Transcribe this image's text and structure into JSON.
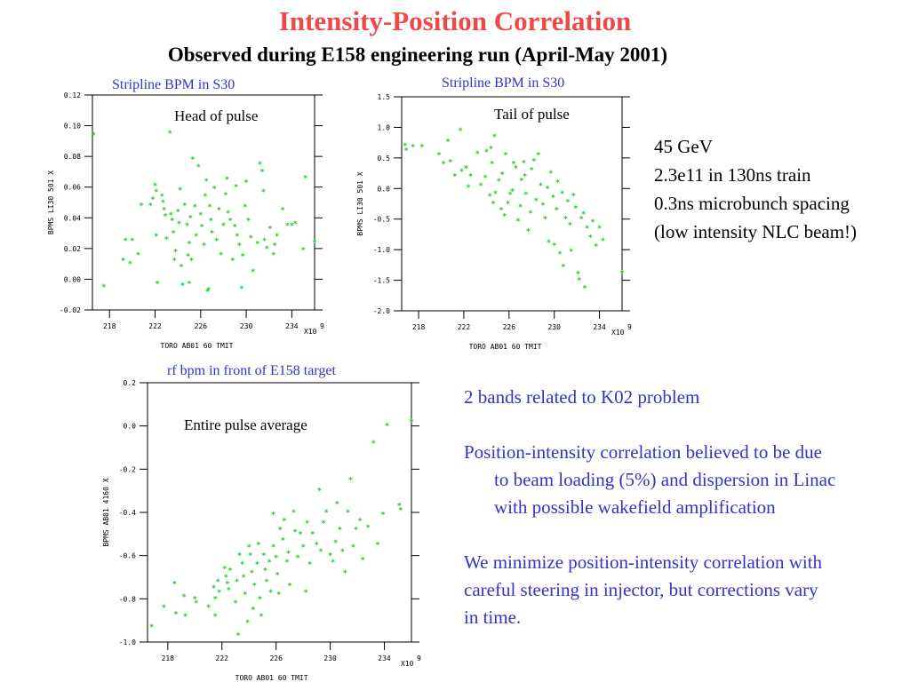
{
  "title": "Intensity-Position Correlation",
  "subtitle": "Observed during E158 engineering run (April-May 2001)",
  "plots": [
    {
      "caption": "Stripline BPM in S30",
      "label": "Head of pulse"
    },
    {
      "caption": "Stripline BPM in S30",
      "label": "Tail of pulse"
    },
    {
      "caption": "rf bpm in front of E158 target",
      "label": "Entire pulse average"
    }
  ],
  "beam_info": [
    "45 GeV",
    "2.3e11 in 130ns train",
    "0.3ns microbunch spacing",
    "(low intensity NLC beam!)"
  ],
  "notes": {
    "bands": "2 bands related to K02 problem",
    "correlation_line1": "Position-intensity correlation believed to be due",
    "correlation_line2": "to beam loading (5%) and dispersion in Linac",
    "correlation_line3": "with possible wakefield amplification",
    "minimize_line1": "We minimize position-intensity correlation with",
    "minimize_line2": "careful steering in injector, but corrections vary",
    "minimize_line3": "in time."
  },
  "chart_data": [
    {
      "type": "scatter",
      "title": "Head of pulse",
      "xlabel": "TORO AB01 60 TMIT",
      "ylabel": "BPMS LI30 501 X",
      "x_multiplier": "X10",
      "x_multiplier_exp": "9",
      "xlim": [
        216.5,
        236
      ],
      "ylim": [
        -0.02,
        0.12
      ],
      "xticks": [
        218,
        222,
        226,
        230,
        234
      ],
      "yticks": [
        -0.02,
        0.0,
        0.02,
        0.04,
        0.06,
        0.08,
        0.1,
        0.12
      ],
      "ytick_labels": [
        "-0.02",
        "0.00",
        "0.02",
        "0.04",
        "0.06",
        "0.08",
        "0.10",
        "0.12"
      ],
      "marker_color": "#22cc22",
      "points": [
        [
          216.6,
          0.094
        ],
        [
          217.5,
          -0.005
        ],
        [
          219.2,
          0.012
        ],
        [
          219.4,
          0.025
        ],
        [
          219.8,
          0.01
        ],
        [
          220.0,
          0.025
        ],
        [
          220.5,
          0.016
        ],
        [
          220.8,
          0.048
        ],
        [
          221.6,
          0.048
        ],
        [
          221.8,
          0.052
        ],
        [
          222.0,
          0.061
        ],
        [
          222.1,
          0.057
        ],
        [
          222.1,
          0.028
        ],
        [
          222.2,
          -0.003
        ],
        [
          222.6,
          0.054
        ],
        [
          222.7,
          0.05
        ],
        [
          222.8,
          0.045
        ],
        [
          222.9,
          0.041
        ],
        [
          223.0,
          0.026
        ],
        [
          223.3,
          0.095
        ],
        [
          223.4,
          0.042
        ],
        [
          223.5,
          0.038
        ],
        [
          223.6,
          0.03
        ],
        [
          223.7,
          0.012
        ],
        [
          223.8,
          0.018
        ],
        [
          224.0,
          0.044
        ],
        [
          224.1,
          0.036
        ],
        [
          224.2,
          0.058
        ],
        [
          224.3,
          0.008
        ],
        [
          224.4,
          -0.004
        ],
        [
          224.6,
          0.048
        ],
        [
          224.8,
          0.035
        ],
        [
          224.9,
          0.015
        ],
        [
          225.0,
          -0.003
        ],
        [
          225.0,
          0.023
        ],
        [
          225.1,
          0.04
        ],
        [
          225.2,
          0.012
        ],
        [
          225.3,
          0.078
        ],
        [
          225.5,
          0.047
        ],
        [
          225.6,
          0.028
        ],
        [
          225.8,
          0.073
        ],
        [
          226.0,
          0.042
        ],
        [
          226.1,
          0.034
        ],
        [
          226.3,
          0.022
        ],
        [
          226.4,
          0.054
        ],
        [
          226.5,
          0.064
        ],
        [
          226.6,
          -0.008
        ],
        [
          226.7,
          -0.007
        ],
        [
          226.8,
          0.047
        ],
        [
          226.9,
          0.038
        ],
        [
          227.0,
          0.03
        ],
        [
          227.2,
          0.059
        ],
        [
          227.4,
          0.025
        ],
        [
          227.6,
          0.045
        ],
        [
          227.8,
          0.016
        ],
        [
          228.0,
          0.035
        ],
        [
          228.2,
          0.055
        ],
        [
          228.3,
          0.065
        ],
        [
          228.4,
          0.043
        ],
        [
          228.6,
          0.038
        ],
        [
          228.8,
          0.012
        ],
        [
          229.0,
          0.034
        ],
        [
          229.1,
          0.06
        ],
        [
          229.2,
          0.028
        ],
        [
          229.4,
          0.022
        ],
        [
          229.6,
          -0.006
        ],
        [
          229.7,
          0.015
        ],
        [
          229.9,
          0.047
        ],
        [
          230.0,
          0.063
        ],
        [
          230.2,
          0.038
        ],
        [
          230.4,
          0.027
        ],
        [
          230.6,
          0.005
        ],
        [
          231.0,
          0.023
        ],
        [
          231.2,
          0.075
        ],
        [
          231.4,
          0.07
        ],
        [
          231.5,
          0.057
        ],
        [
          231.6,
          0.025
        ],
        [
          231.8,
          0.02
        ],
        [
          232.1,
          0.033
        ],
        [
          232.4,
          0.016
        ],
        [
          232.5,
          0.022
        ],
        [
          232.7,
          0.028
        ],
        [
          233.2,
          0.045
        ],
        [
          233.6,
          0.035
        ],
        [
          234.0,
          0.035
        ],
        [
          234.3,
          0.036
        ],
        [
          235.0,
          0.019
        ],
        [
          235.2,
          0.066
        ],
        [
          236.0,
          0.024
        ]
      ]
    },
    {
      "type": "scatter",
      "title": "Tail of pulse",
      "xlabel": "TORO AB01 60 TMIT",
      "ylabel": "BPMS LI30 501 X",
      "x_multiplier": "X10",
      "x_multiplier_exp": "9",
      "xlim": [
        216.5,
        236
      ],
      "ylim": [
        -2.0,
        1.5
      ],
      "xticks": [
        218,
        222,
        226,
        230,
        234
      ],
      "yticks": [
        -2.0,
        -1.5,
        -1.0,
        -0.5,
        0.0,
        0.5,
        1.0,
        1.5
      ],
      "ytick_labels": [
        "-2.0",
        "-1.5",
        "-1.0",
        "-0.5",
        "0.0",
        "0.5",
        "1.0",
        "1.5"
      ],
      "marker_color": "#22cc22",
      "points": [
        [
          216.8,
          0.7
        ],
        [
          216.9,
          0.62
        ],
        [
          217.5,
          0.68
        ],
        [
          218.3,
          0.68
        ],
        [
          219.8,
          0.55
        ],
        [
          220.2,
          0.4
        ],
        [
          220.6,
          0.77
        ],
        [
          220.8,
          0.43
        ],
        [
          221.2,
          0.2
        ],
        [
          221.7,
          0.95
        ],
        [
          221.8,
          0.28
        ],
        [
          222.2,
          0.33
        ],
        [
          222.4,
          0.02
        ],
        [
          222.6,
          0.2
        ],
        [
          223.2,
          0.57
        ],
        [
          223.5,
          0.05
        ],
        [
          223.9,
          0.18
        ],
        [
          224.0,
          0.6
        ],
        [
          224.3,
          -0.13
        ],
        [
          224.4,
          0.65
        ],
        [
          224.5,
          0.4
        ],
        [
          224.6,
          -0.25
        ],
        [
          224.7,
          0.85
        ],
        [
          224.8,
          -0.08
        ],
        [
          225.1,
          0.12
        ],
        [
          225.3,
          -0.35
        ],
        [
          225.4,
          0.23
        ],
        [
          225.6,
          -0.45
        ],
        [
          225.7,
          0.55
        ],
        [
          225.9,
          -0.25
        ],
        [
          226.1,
          -0.1
        ],
        [
          226.3,
          -0.05
        ],
        [
          226.4,
          0.4
        ],
        [
          226.6,
          0.33
        ],
        [
          226.8,
          -0.53
        ],
        [
          227.0,
          -0.3
        ],
        [
          227.1,
          0.13
        ],
        [
          227.3,
          0.42
        ],
        [
          227.4,
          0.2
        ],
        [
          227.5,
          -0.1
        ],
        [
          227.7,
          -0.7
        ],
        [
          227.9,
          -0.4
        ],
        [
          228.0,
          0.3
        ],
        [
          228.2,
          0.45
        ],
        [
          228.4,
          -0.2
        ],
        [
          228.6,
          0.55
        ],
        [
          228.8,
          0.05
        ],
        [
          229.0,
          -0.27
        ],
        [
          229.2,
          -0.5
        ],
        [
          229.4,
          0.0
        ],
        [
          229.5,
          -0.88
        ],
        [
          229.7,
          0.25
        ],
        [
          229.9,
          -0.15
        ],
        [
          230.0,
          -0.93
        ],
        [
          230.2,
          -0.35
        ],
        [
          230.3,
          0.1
        ],
        [
          230.5,
          -1.07
        ],
        [
          230.7,
          -0.08
        ],
        [
          230.8,
          -1.28
        ],
        [
          231.0,
          -0.5
        ],
        [
          231.2,
          -0.22
        ],
        [
          231.4,
          -0.6
        ],
        [
          231.5,
          -1.03
        ],
        [
          231.7,
          -0.12
        ],
        [
          231.9,
          -0.32
        ],
        [
          232.1,
          -1.4
        ],
        [
          232.2,
          -1.5
        ],
        [
          232.4,
          -0.5
        ],
        [
          232.6,
          -0.42
        ],
        [
          232.7,
          -1.63
        ],
        [
          232.9,
          -0.65
        ],
        [
          233.2,
          -0.8
        ],
        [
          233.4,
          -0.55
        ],
        [
          233.7,
          -0.95
        ],
        [
          234.0,
          -0.65
        ],
        [
          234.3,
          -0.85
        ],
        [
          236.0,
          -1.38
        ]
      ]
    },
    {
      "type": "scatter",
      "title": "Entire pulse average",
      "xlabel": "TORO AB01 60 TMIT",
      "ylabel": "BPMS AB01 4160 X",
      "x_multiplier": "X10",
      "x_multiplier_exp": "9",
      "xlim": [
        216.5,
        236
      ],
      "ylim": [
        -1.0,
        0.2
      ],
      "xticks": [
        218,
        222,
        226,
        230,
        234
      ],
      "yticks": [
        -1.0,
        -0.8,
        -0.6,
        -0.4,
        -0.2,
        0.0,
        0.2
      ],
      "ytick_labels": [
        "-1.0",
        "-0.8",
        "-0.6",
        "-0.4",
        "-0.2",
        "0.0",
        "0.2"
      ],
      "marker_color": "#22cc22",
      "points": [
        [
          216.8,
          -0.93
        ],
        [
          217.7,
          -0.84
        ],
        [
          218.5,
          -0.73
        ],
        [
          218.6,
          -0.87
        ],
        [
          219.2,
          -0.79
        ],
        [
          219.3,
          -0.88
        ],
        [
          220.0,
          -0.8
        ],
        [
          220.1,
          -0.82
        ],
        [
          221.0,
          -0.84
        ],
        [
          221.4,
          -0.75
        ],
        [
          221.5,
          -0.8
        ],
        [
          221.5,
          -0.88
        ],
        [
          221.7,
          -0.72
        ],
        [
          221.8,
          -0.77
        ],
        [
          222.2,
          -0.66
        ],
        [
          222.3,
          -0.7
        ],
        [
          222.4,
          -0.73
        ],
        [
          222.5,
          -0.76
        ],
        [
          222.6,
          -0.67
        ],
        [
          223.0,
          -0.82
        ],
        [
          223.1,
          -0.72
        ],
        [
          223.2,
          -0.97
        ],
        [
          223.3,
          -0.6
        ],
        [
          223.5,
          -0.64
        ],
        [
          223.6,
          -0.7
        ],
        [
          223.7,
          -0.78
        ],
        [
          223.9,
          -0.91
        ],
        [
          224.0,
          -0.56
        ],
        [
          224.1,
          -0.6
        ],
        [
          224.2,
          -0.68
        ],
        [
          224.3,
          -0.85
        ],
        [
          224.4,
          -0.74
        ],
        [
          224.6,
          -0.64
        ],
        [
          224.7,
          -0.55
        ],
        [
          224.8,
          -0.8
        ],
        [
          224.9,
          -0.88
        ],
        [
          225.1,
          -0.6
        ],
        [
          225.2,
          -0.67
        ],
        [
          225.3,
          -0.72
        ],
        [
          225.5,
          -0.63
        ],
        [
          225.6,
          -0.77
        ],
        [
          225.8,
          -0.41
        ],
        [
          225.8,
          -0.56
        ],
        [
          226.0,
          -0.61
        ],
        [
          226.1,
          -0.69
        ],
        [
          226.2,
          -0.78
        ],
        [
          226.3,
          -0.48
        ],
        [
          226.5,
          -0.53
        ],
        [
          226.6,
          -0.44
        ],
        [
          226.8,
          -0.63
        ],
        [
          226.9,
          -0.59
        ],
        [
          227.0,
          -0.74
        ],
        [
          227.3,
          -0.4
        ],
        [
          227.4,
          -0.49
        ],
        [
          227.6,
          -0.61
        ],
        [
          227.8,
          -0.5
        ],
        [
          228.0,
          -0.56
        ],
        [
          228.2,
          -0.77
        ],
        [
          228.3,
          -0.45
        ],
        [
          228.5,
          -0.64
        ],
        [
          228.7,
          -0.5
        ],
        [
          229.0,
          -0.55
        ],
        [
          229.2,
          -0.3
        ],
        [
          229.3,
          -0.58
        ],
        [
          229.5,
          -0.45
        ],
        [
          229.7,
          -0.4
        ],
        [
          230.0,
          -0.6
        ],
        [
          230.2,
          -0.63
        ],
        [
          230.4,
          -0.54
        ],
        [
          230.5,
          -0.36
        ],
        [
          230.7,
          -0.48
        ],
        [
          230.9,
          -0.58
        ],
        [
          231.1,
          -0.68
        ],
        [
          231.3,
          -0.4
        ],
        [
          231.5,
          -0.25
        ],
        [
          231.7,
          -0.56
        ],
        [
          231.9,
          -0.48
        ],
        [
          232.2,
          -0.44
        ],
        [
          232.4,
          -0.62
        ],
        [
          232.8,
          -0.47
        ],
        [
          233.2,
          -0.08
        ],
        [
          233.5,
          -0.55
        ],
        [
          233.9,
          -0.41
        ],
        [
          234.2,
          0.0
        ],
        [
          235.1,
          -0.37
        ],
        [
          235.2,
          -0.39
        ],
        [
          236.0,
          0.02
        ]
      ]
    }
  ]
}
